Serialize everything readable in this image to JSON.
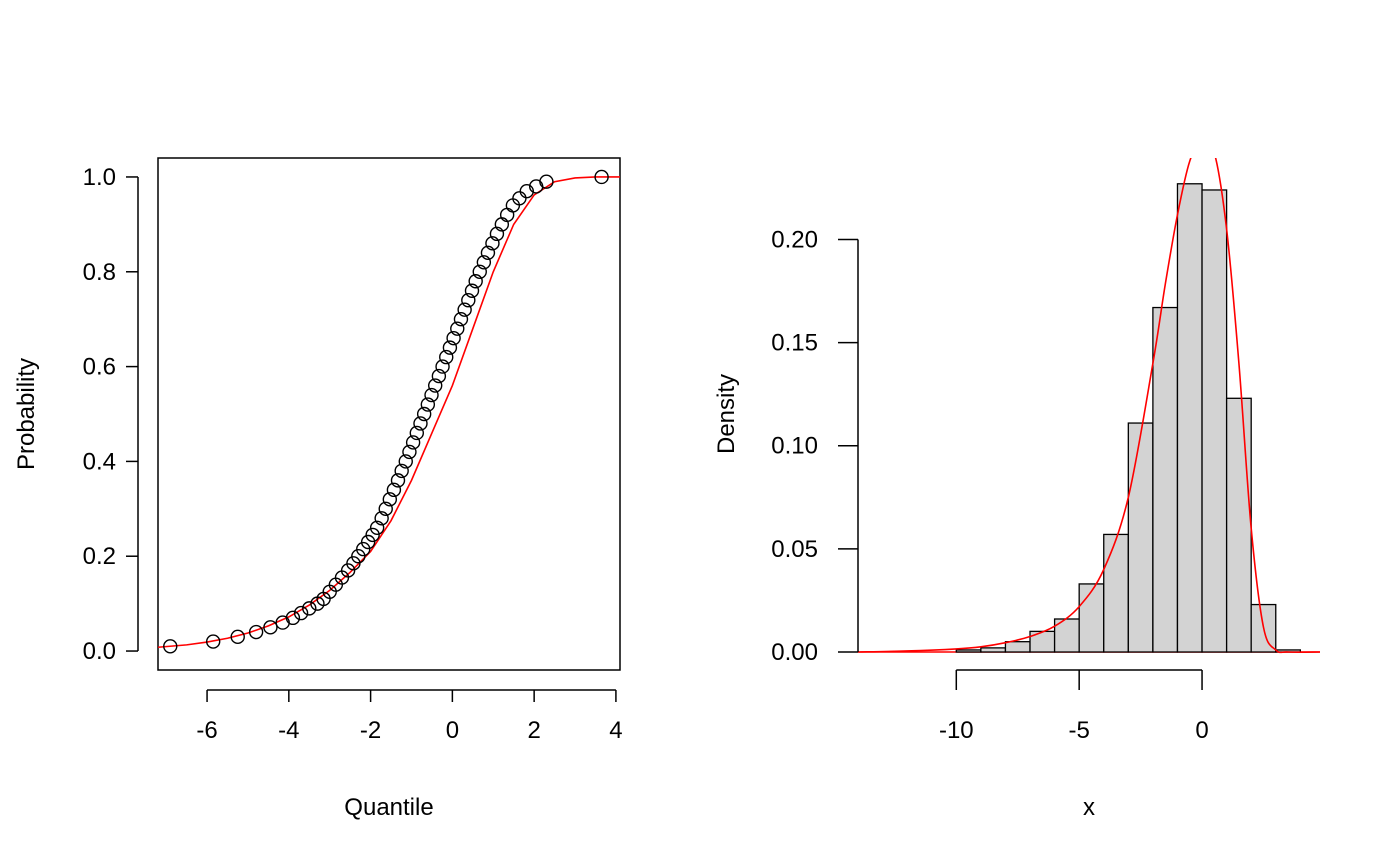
{
  "chart_data": [
    {
      "type": "scatter",
      "xlabel": "Quantile",
      "ylabel": "Probability",
      "xlim": [
        -7.2,
        4.1
      ],
      "ylim": [
        -0.04,
        1.04
      ],
      "xticks": [
        "-6",
        "-4",
        "-2",
        "0",
        "2",
        "4"
      ],
      "xtick_values": [
        -6,
        -4,
        -2,
        0,
        2,
        4
      ],
      "yticks": [
        "0.0",
        "0.2",
        "0.4",
        "0.6",
        "0.8",
        "1.0"
      ],
      "ytick_values": [
        0.0,
        0.2,
        0.4,
        0.6,
        0.8,
        1.0
      ],
      "points_x": [
        -6.9,
        -5.85,
        -5.25,
        -4.8,
        -4.45,
        -4.15,
        -3.9,
        -3.7,
        -3.5,
        -3.3,
        -3.15,
        -3.0,
        -2.85,
        -2.7,
        -2.55,
        -2.42,
        -2.3,
        -2.18,
        -2.06,
        -1.95,
        -1.84,
        -1.73,
        -1.63,
        -1.53,
        -1.43,
        -1.33,
        -1.24,
        -1.14,
        -1.05,
        -0.96,
        -0.87,
        -0.78,
        -0.69,
        -0.6,
        -0.51,
        -0.42,
        -0.33,
        -0.24,
        -0.15,
        -0.06,
        0.03,
        0.12,
        0.21,
        0.3,
        0.39,
        0.48,
        0.57,
        0.67,
        0.77,
        0.87,
        0.98,
        1.09,
        1.21,
        1.34,
        1.48,
        1.64,
        1.82,
        2.05,
        2.3,
        3.65
      ],
      "points_y": [
        0.01,
        0.02,
        0.03,
        0.04,
        0.05,
        0.06,
        0.07,
        0.08,
        0.09,
        0.1,
        0.11,
        0.125,
        0.14,
        0.155,
        0.17,
        0.185,
        0.2,
        0.215,
        0.23,
        0.245,
        0.26,
        0.28,
        0.3,
        0.32,
        0.34,
        0.36,
        0.38,
        0.4,
        0.42,
        0.44,
        0.46,
        0.48,
        0.5,
        0.52,
        0.54,
        0.56,
        0.58,
        0.6,
        0.62,
        0.64,
        0.66,
        0.68,
        0.7,
        0.72,
        0.74,
        0.76,
        0.78,
        0.8,
        0.82,
        0.84,
        0.86,
        0.88,
        0.9,
        0.92,
        0.94,
        0.955,
        0.97,
        0.98,
        0.99,
        1.0
      ],
      "fitted_curve_x": [
        -7.2,
        -6.5,
        -6.0,
        -5.5,
        -5.0,
        -4.5,
        -4.0,
        -3.5,
        -3.0,
        -2.5,
        -2.0,
        -1.5,
        -1.0,
        -0.5,
        0.0,
        0.5,
        1.0,
        1.5,
        2.0,
        2.5,
        3.0,
        3.5,
        4.1
      ],
      "fitted_curve_y": [
        0.008,
        0.013,
        0.019,
        0.027,
        0.038,
        0.053,
        0.072,
        0.097,
        0.128,
        0.166,
        0.21,
        0.275,
        0.36,
        0.46,
        0.56,
        0.68,
        0.8,
        0.9,
        0.962,
        0.99,
        0.998,
        1.0,
        1.0
      ],
      "colors": {
        "points": "#000000",
        "fitted_curve": "#ff0000"
      },
      "grid": false,
      "legend": "none"
    },
    {
      "type": "histogram",
      "xlabel": "x",
      "ylabel": "Density",
      "xlim": [
        -14,
        4.8
      ],
      "ylim": [
        0,
        0.2395
      ],
      "xticks": [
        "-10",
        "-5",
        "0"
      ],
      "xtick_values": [
        -10,
        -5,
        0
      ],
      "yticks": [
        "0.00",
        "0.05",
        "0.10",
        "0.15",
        "0.20"
      ],
      "ytick_values": [
        0.0,
        0.05,
        0.1,
        0.15,
        0.2
      ],
      "bin_edges": [
        -10,
        -9,
        -8,
        -7,
        -6,
        -5,
        -4,
        -3,
        -2,
        -1,
        0,
        1,
        2,
        3,
        4
      ],
      "densities": [
        0.001,
        0.002,
        0.005,
        0.01,
        0.016,
        0.033,
        0.057,
        0.111,
        0.167,
        0.227,
        0.224,
        0.123,
        0.023,
        0.001
      ],
      "density_curve_x": [
        -14,
        -12,
        -10,
        -9,
        -8,
        -7,
        -6,
        -5,
        -4,
        -3,
        -2,
        -1.5,
        -1,
        -0.5,
        0,
        0.5,
        1,
        1.5,
        2,
        2.5,
        3,
        3.5,
        4.8
      ],
      "density_curve_y": [
        0.0,
        0.0005,
        0.0015,
        0.0025,
        0.0045,
        0.0075,
        0.0125,
        0.022,
        0.04,
        0.075,
        0.14,
        0.178,
        0.212,
        0.238,
        0.248,
        0.242,
        0.205,
        0.14,
        0.06,
        0.012,
        0.001,
        0.0,
        0.0
      ],
      "colors": {
        "bars": "#d3d3d3",
        "bar_outline": "#000000",
        "density_curve": "#ff0000"
      },
      "grid": false,
      "legend": "none"
    }
  ]
}
